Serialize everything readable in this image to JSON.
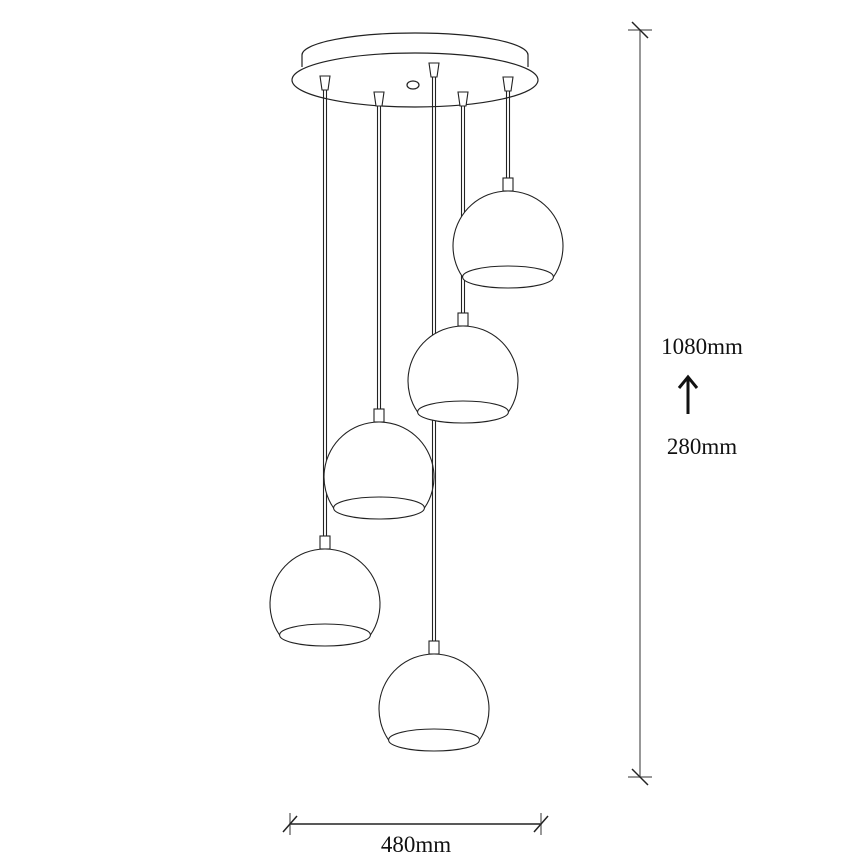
{
  "dimensions": {
    "width_label": "480mm",
    "height_max_label": "1080mm",
    "height_min_label": "280mm",
    "adjust_arrow_icon": "arrow-up-icon"
  },
  "colors": {
    "line": "#222222",
    "dim_line": "#888888"
  }
}
